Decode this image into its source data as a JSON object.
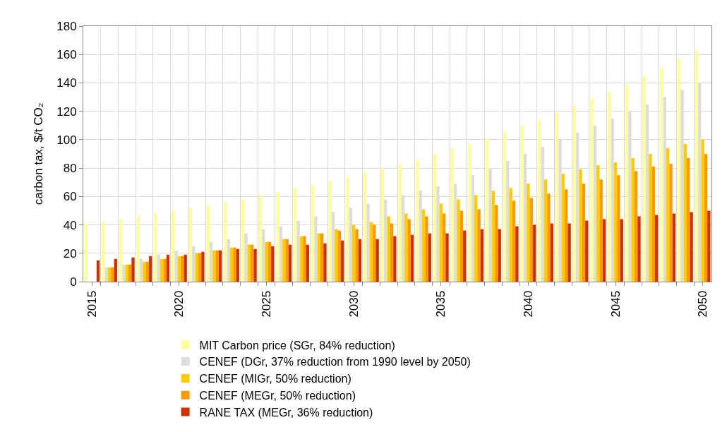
{
  "chart_data": {
    "type": "bar",
    "ylabel": "carbon tax, $/t CO₂",
    "categories": [
      "2015",
      null,
      null,
      null,
      null,
      "2020",
      null,
      null,
      null,
      null,
      "2025",
      null,
      null,
      null,
      null,
      "2030",
      null,
      null,
      null,
      null,
      "2035",
      null,
      null,
      null,
      null,
      "2040",
      null,
      null,
      null,
      null,
      "2045",
      null,
      null,
      null,
      null,
      "2050"
    ],
    "series": [
      {
        "name": "MIT Carbon price (SGr, 84% reduction)",
        "color": "#ffff99",
        "values": [
          41,
          42,
          44,
          46,
          48,
          50,
          52,
          54,
          56,
          58,
          61,
          63,
          66,
          68,
          71,
          74,
          77,
          80,
          83,
          86,
          90,
          94,
          97,
          101,
          106,
          110,
          114,
          119,
          124,
          129,
          134,
          139,
          145,
          151,
          157,
          163
        ]
      },
      {
        "name": "CENEF (DGr, 37% reduction from 1990 level by 2050)",
        "color": "#dddddd",
        "values": [
          null,
          10,
          12,
          16,
          19,
          22,
          25,
          28,
          30,
          34,
          37,
          39,
          43,
          46,
          49,
          52,
          55,
          58,
          61,
          64,
          67,
          69,
          75,
          80,
          85,
          90,
          95,
          100,
          105,
          110,
          115,
          120,
          125,
          130,
          135,
          140
        ]
      },
      {
        "name": "CENEF (MIGr, 50% reduction)",
        "color": "#ffcc00",
        "values": [
          null,
          10,
          12,
          14,
          16,
          18,
          20,
          22,
          24,
          26,
          28,
          30,
          32,
          34,
          37,
          40,
          42,
          46,
          48,
          51,
          55,
          58,
          61,
          64,
          66,
          69,
          72,
          76,
          79,
          82,
          84,
          87,
          90,
          94,
          97,
          100
        ]
      },
      {
        "name": "CENEF (MEGr, 50% reduction)",
        "color": "#ff9900",
        "values": [
          null,
          10,
          12,
          14,
          16,
          18,
          20,
          22,
          24,
          26,
          28,
          30,
          32,
          34,
          36,
          37,
          40,
          41,
          44,
          46,
          48,
          50,
          51,
          54,
          57,
          59,
          62,
          65,
          69,
          72,
          75,
          78,
          81,
          83,
          87,
          90
        ]
      },
      {
        "name": "RANE TAX (MEGr, 36% reduction)",
        "color": "#cc3300",
        "values": [
          15,
          16,
          17,
          18,
          19,
          19,
          21,
          22,
          23,
          23,
          25,
          26,
          26,
          27,
          29,
          30,
          30,
          32,
          33,
          34,
          34,
          36,
          37,
          37,
          39,
          40,
          41,
          41,
          43,
          44,
          44,
          46,
          47,
          48,
          49,
          50
        ]
      }
    ],
    "ylim": [
      0,
      180
    ],
    "yticks": [
      0,
      20,
      40,
      60,
      80,
      100,
      120,
      140,
      160,
      180
    ],
    "grid": true,
    "legend": "bottom"
  }
}
